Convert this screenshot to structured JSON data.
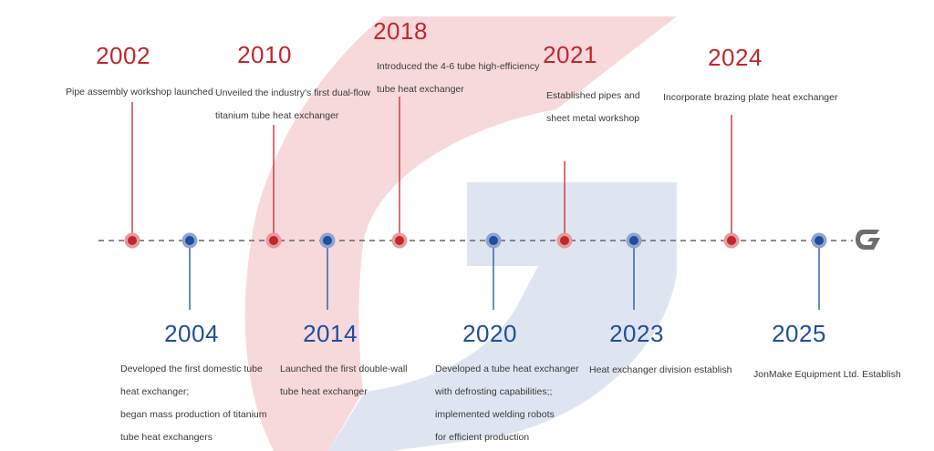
{
  "colors": {
    "top_accent": "#c1272d",
    "bottom_accent": "#1f4e9c",
    "watermark_red": "#f7d9dc",
    "watermark_blue": "#dfe5f0",
    "axis_line": "#666666",
    "logo_gray": "#6d6d6d"
  },
  "end_icon": "g-logo-icon",
  "milestones": [
    {
      "year": "2002",
      "side": "top",
      "lines": [
        "Pipe assembly workshop launched"
      ]
    },
    {
      "year": "2004",
      "side": "bottom",
      "lines": [
        "Developed the first domestic tube",
        "heat exchanger;",
        "began mass production of titanium",
        "tube heat exchangers"
      ]
    },
    {
      "year": "2010",
      "side": "top",
      "lines": [
        "Unveiled the industry's first  dual-flow",
        " titanium tube heat exchanger"
      ]
    },
    {
      "year": "2014",
      "side": "bottom",
      "lines": [
        "Launched the first double-wall",
        "tube heat exchanger"
      ]
    },
    {
      "year": "2018",
      "side": "top",
      "lines": [
        "Introduced the 4-6 tube high-efficiency",
        "tube heat exchanger"
      ]
    },
    {
      "year": "2020",
      "side": "bottom",
      "lines": [
        "Developed a tube heat exchanger",
        "with defrosting capabilities;;",
        "implemented welding robots",
        "for efficient production"
      ]
    },
    {
      "year": "2021",
      "side": "top",
      "lines": [
        "Established pipes and",
        "sheet metal workshop"
      ]
    },
    {
      "year": "2023",
      "side": "bottom",
      "lines": [
        "Heat exchanger division establish"
      ]
    },
    {
      "year": "2024",
      "side": "top",
      "lines": [
        "Incorporate brazing plate heat exchanger"
      ]
    },
    {
      "year": "2025",
      "side": "bottom",
      "lines": [
        "JonMake Equipment Ltd. Establish"
      ]
    }
  ]
}
